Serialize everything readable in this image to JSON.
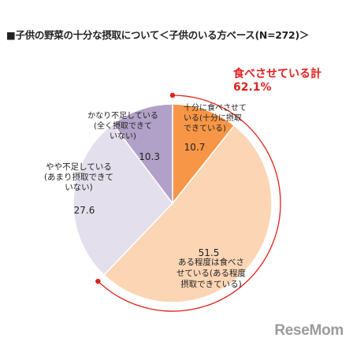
{
  "title": "■子供の野菜の十分な摂取について＜子供のいる方ベース(N=272)＞",
  "watermark": "ReseMom",
  "chart_data": {
    "type": "pie",
    "title": "■子供の野菜の十分な摂取について＜子供のいる方ベース(N=272)＞",
    "start": "12 o'clock, clockwise",
    "slices": [
      {
        "label_lines": [
          "十分に食べさせて",
          "いる(十分に摂取",
          "できている)"
        ],
        "value": 10.7,
        "color": "#f79646"
      },
      {
        "label_lines": [
          "ある程度は食べさ",
          "せている(ある程度",
          "摂取できている)"
        ],
        "value": 51.5,
        "color": "#fcd5b4"
      },
      {
        "label_lines": [
          "やや不足している",
          "(あまり摂取できて",
          "いない)"
        ],
        "value": 27.6,
        "color": "#e4dfec"
      },
      {
        "label_lines": [
          "かなり不足している",
          "(全く摂取できて",
          "いない)"
        ],
        "value": 10.3,
        "color": "#b1a0c7"
      }
    ],
    "total_label": "食べさせている計",
    "total_value": "62.1%",
    "total_color": "#e0201c"
  }
}
